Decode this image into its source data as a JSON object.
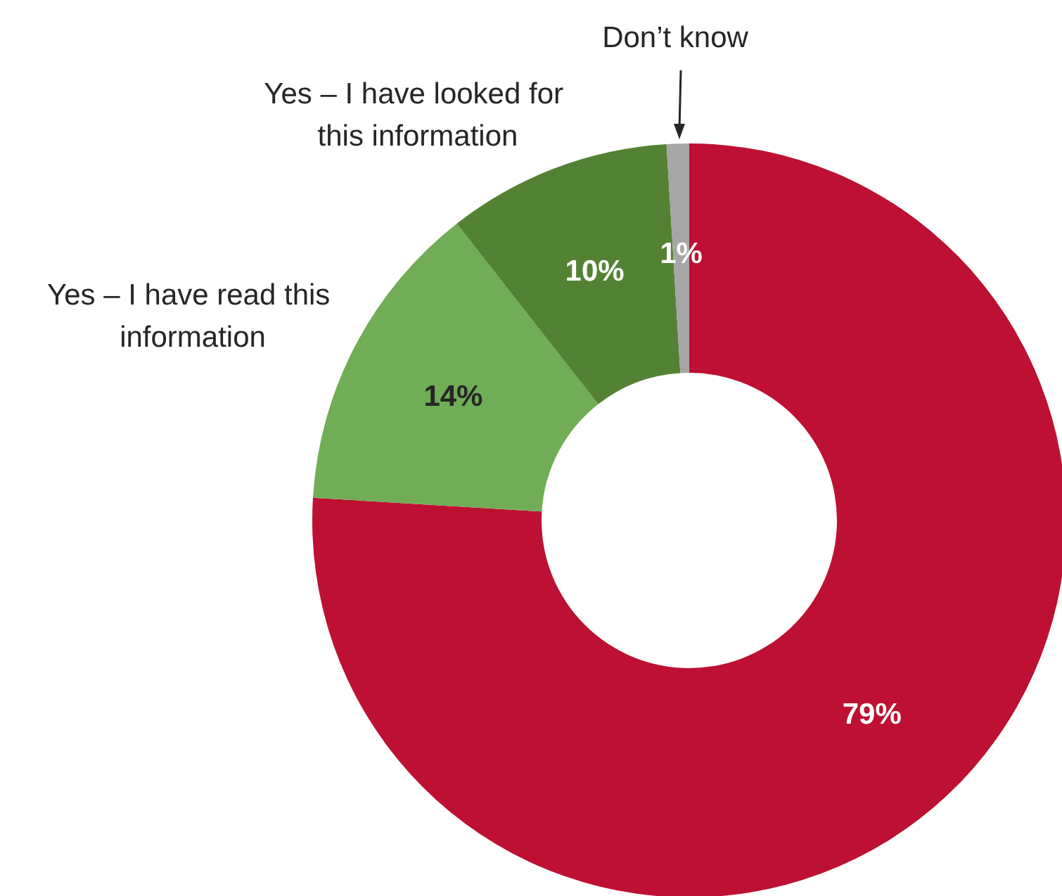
{
  "chart_data": {
    "type": "donut",
    "categories": [
      null,
      "Yes – I have read this information",
      "Yes – I have looked for this information",
      "Don’t know"
    ],
    "values": [
      79,
      14,
      10,
      1
    ],
    "colors": [
      "#be1033",
      "#70ad56",
      "#548235",
      "#a6a6a6"
    ],
    "value_labels": [
      "79%",
      "14%",
      "10%",
      "1%"
    ],
    "legend": false
  }
}
